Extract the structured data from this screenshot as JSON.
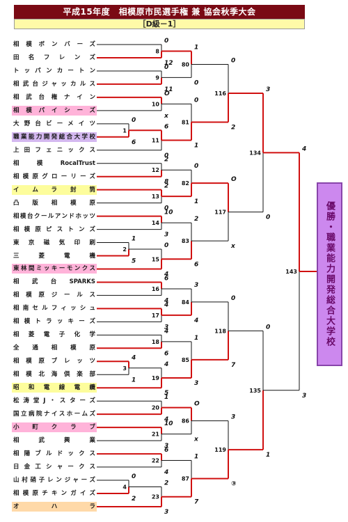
{
  "title": "平成15年度　相模原市民選手権 兼 協会秋季大会",
  "subtitle": "［D級－1］",
  "winner_label": "優勝・職業能力開発総合大学校",
  "colors": {
    "title_bg": "#7a0a14",
    "subtitle_bg": "#fffaa8",
    "line": "#d01010",
    "winner_bg": "#cc88ee"
  },
  "teams": [
    {
      "name": "相模ボンバーズ",
      "hl": ""
    },
    {
      "name": "田名フレンズ",
      "hl": ""
    },
    {
      "name": "トッパンカートン",
      "hl": ""
    },
    {
      "name": "相武台ジャッカルス",
      "hl": ""
    },
    {
      "name": "相武台権ナイン",
      "hl": ""
    },
    {
      "name": "相模パイシーズ",
      "hl": "pink"
    },
    {
      "name": "大野台ビーメイツ",
      "hl": ""
    },
    {
      "name": "職業能力開発総合大学校",
      "hl": "purple"
    },
    {
      "name": "上田フェニックス",
      "hl": ""
    },
    {
      "name": "相模RocalTrust",
      "hl": ""
    },
    {
      "name": "相模原グローリーズ",
      "hl": ""
    },
    {
      "name": "イムラ封筒",
      "hl": "yellow"
    },
    {
      "name": "凸版相模原",
      "hl": ""
    },
    {
      "name": "相模台クールアンドホッツ",
      "hl": ""
    },
    {
      "name": "相模原ピストンズ",
      "hl": ""
    },
    {
      "name": "東京磁気印刷",
      "hl": ""
    },
    {
      "name": "三菱電機",
      "hl": ""
    },
    {
      "name": "東林間ミッキーモンクス",
      "hl": "pink"
    },
    {
      "name": "相武台SPARKS",
      "hl": ""
    },
    {
      "name": "相模原ジールス",
      "hl": ""
    },
    {
      "name": "相南セルフィッシュ",
      "hl": ""
    },
    {
      "name": "相模トラッキーズ",
      "hl": ""
    },
    {
      "name": "相菱電子化学",
      "hl": ""
    },
    {
      "name": "全通相模原",
      "hl": ""
    },
    {
      "name": "相模原ブレッツ",
      "hl": ""
    },
    {
      "name": "相模北海倶楽部",
      "hl": ""
    },
    {
      "name": "昭和電線電纜",
      "hl": "yellow"
    },
    {
      "name": "松涛堂J・スターズ",
      "hl": ""
    },
    {
      "name": "国立病院ナイスホームズ",
      "hl": ""
    },
    {
      "name": "小町クラブ",
      "hl": "pink"
    },
    {
      "name": "相武興業",
      "hl": ""
    },
    {
      "name": "相陽ブルドックス",
      "hl": ""
    },
    {
      "name": "日金工シャークス",
      "hl": ""
    },
    {
      "name": "山村硝子レンジャーズ",
      "hl": ""
    },
    {
      "name": "相模原チキンガイズ",
      "hl": ""
    },
    {
      "name": "オハラ",
      "hl": "orange"
    }
  ],
  "games": [
    {
      "id": "8",
      "top": "0",
      "bot": "12"
    },
    {
      "id": "9",
      "top": "0",
      "bot": "11"
    },
    {
      "id": "10",
      "top": "O",
      "bot": "x"
    },
    {
      "id": "1",
      "top": "0",
      "bot": "6"
    },
    {
      "id": "11",
      "top": "6",
      "bot": "0"
    },
    {
      "id": "12",
      "top": "2",
      "bot": "8"
    },
    {
      "id": "13",
      "top": "2",
      "bot": "0"
    },
    {
      "id": "14",
      "top": "10",
      "bot": "3"
    },
    {
      "id": "2",
      "top": "1",
      "bot": "5"
    },
    {
      "id": "15",
      "top": "0",
      "bot": "4"
    },
    {
      "id": "16",
      "top": "6",
      "bot": "4"
    },
    {
      "id": "17",
      "top": "4",
      "bot": "3"
    },
    {
      "id": "18",
      "top": "4",
      "bot": "6"
    },
    {
      "id": "3",
      "top": "4",
      "bot": "1"
    },
    {
      "id": "19",
      "top": "4",
      "bot": "5"
    },
    {
      "id": "20",
      "top": "1",
      "bot": "4"
    },
    {
      "id": "21",
      "top": "10",
      "bot": "3"
    },
    {
      "id": "22",
      "top": "6",
      "bot": "4"
    },
    {
      "id": "4",
      "top": "0",
      "bot": "2"
    },
    {
      "id": "23",
      "top": "2",
      "bot": "3"
    },
    {
      "id": "80",
      "top": "1",
      "bot": "0"
    },
    {
      "id": "81",
      "top": "0",
      "bot": "1"
    },
    {
      "id": "82",
      "top": "0",
      "bot": "1"
    },
    {
      "id": "83",
      "top": "2",
      "bot": "6"
    },
    {
      "id": "84",
      "top": "3",
      "bot": "4"
    },
    {
      "id": "85",
      "top": "1",
      "bot": "3"
    },
    {
      "id": "86",
      "top": "O",
      "bot": "x"
    },
    {
      "id": "87",
      "top": "1",
      "bot": "7"
    },
    {
      "id": "116",
      "top": "0",
      "bot": "2"
    },
    {
      "id": "117",
      "top": "O",
      "bot": "x"
    },
    {
      "id": "118",
      "top": "0",
      "bot": "7"
    },
    {
      "id": "119",
      "top": "3",
      "bot": "③"
    },
    {
      "id": "134",
      "top": "3",
      "bot": "0"
    },
    {
      "id": "135",
      "top": "0",
      "bot": "1"
    },
    {
      "id": "143",
      "top": "4",
      "bot": "3"
    }
  ]
}
